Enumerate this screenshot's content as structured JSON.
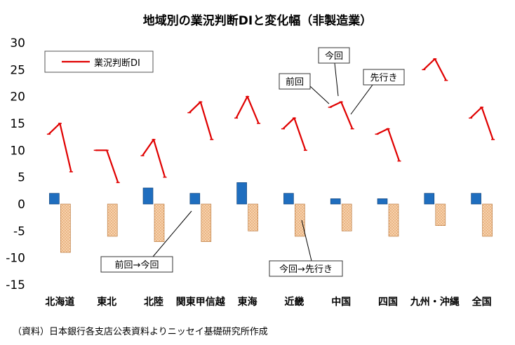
{
  "chart_data": {
    "type": "line+bar",
    "title": "地域別の業況判断DIと変化幅（非製造業）",
    "categories": [
      "北海道",
      "東北",
      "北陸",
      "関東甲信越",
      "東海",
      "近畿",
      "中国",
      "四国",
      "九州・沖縄",
      "全国"
    ],
    "series": [
      {
        "name": "業況判断DI",
        "kind": "line",
        "color": "#e00000",
        "points_per_category": [
          "前回",
          "今回",
          "先行き"
        ],
        "values": [
          [
            13,
            15,
            6
          ],
          [
            10,
            10,
            4
          ],
          [
            9,
            12,
            5
          ],
          [
            17,
            19,
            12
          ],
          [
            16,
            20,
            15
          ],
          [
            14,
            16,
            10
          ],
          [
            18,
            19,
            14
          ],
          [
            13,
            14,
            8
          ],
          [
            25,
            27,
            23
          ],
          [
            16,
            18,
            12
          ]
        ]
      },
      {
        "name": "前回→今回",
        "kind": "bar",
        "color": "#1f6ebf",
        "values": [
          2,
          0,
          3,
          2,
          4,
          2,
          1,
          1,
          2,
          2
        ]
      },
      {
        "name": "今回→先行き",
        "kind": "bar",
        "color": "#f3c9a0",
        "values": [
          -9,
          -6,
          -7,
          -7,
          -5,
          -6,
          -5,
          -6,
          -4,
          -6
        ]
      }
    ],
    "ylim": [
      -15,
      30
    ],
    "yticks": [
      30,
      25,
      20,
      15,
      10,
      5,
      0,
      -5,
      -10,
      -15
    ],
    "legend": {
      "entry": "業況判断DI",
      "placement": "top-left"
    },
    "annotations": [
      "前回",
      "今回",
      "先行き",
      "前回→今回",
      "今回→先行き"
    ],
    "grid": false
  },
  "source": "（資料）日本銀行各支店公表資料よりニッセイ基礎研究所作成"
}
